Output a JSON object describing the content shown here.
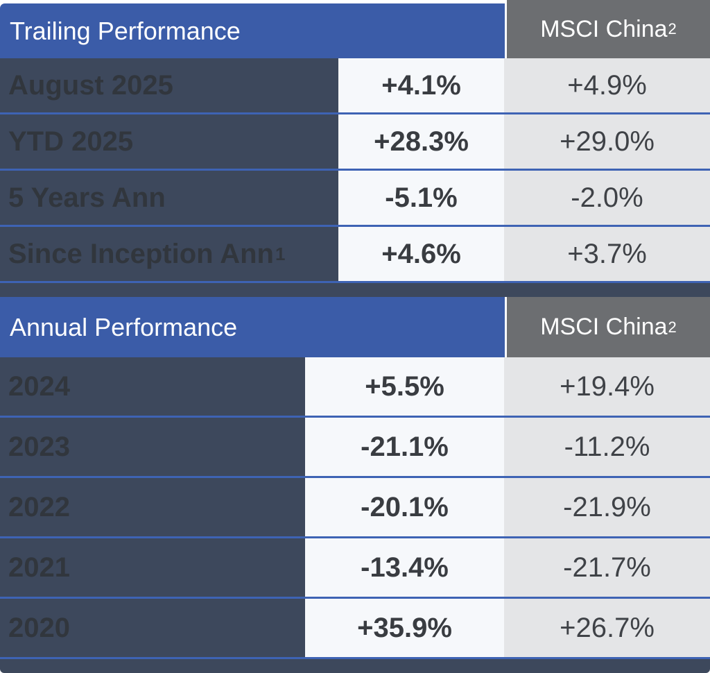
{
  "colors": {
    "header_blue": "#3B5CA8",
    "header_gray": "#6C6E71",
    "label_column_slate": "#3D485C",
    "fund_column_bg": "#F6F8FB",
    "benchmark_column_bg": "#E4E5E7",
    "divider_blue": "#3E63B4"
  },
  "tables": [
    {
      "title": "Trailing Performance",
      "benchmark_header": {
        "name": "MSCI China",
        "superscript": "2"
      },
      "rows": [
        {
          "label": "August 2025",
          "fund": "+4.1%",
          "bench": "+4.9%"
        },
        {
          "label": "YTD 2025",
          "fund": "+28.3%",
          "bench": "+29.0%"
        },
        {
          "label": "5 Years Ann",
          "fund": "-5.1%",
          "bench": "-2.0%"
        },
        {
          "label": "Since Inception Ann",
          "label_sup": "1",
          "fund": "+4.6%",
          "bench": "+3.7%"
        }
      ]
    },
    {
      "title": "Annual Performance",
      "benchmark_header": {
        "name": "MSCI China",
        "superscript": "2"
      },
      "rows": [
        {
          "label": "2024",
          "fund": "+5.5%",
          "bench": "+19.4%"
        },
        {
          "label": "2023",
          "fund": "-21.1%",
          "bench": "-11.2%"
        },
        {
          "label": "2022",
          "fund": "-20.1%",
          "bench": "-21.9%"
        },
        {
          "label": "2021",
          "fund": "-13.4%",
          "bench": "-21.7%"
        },
        {
          "label": "2020",
          "fund": "+35.9%",
          "bench": "+26.7%"
        }
      ]
    }
  ],
  "chart_data": [
    {
      "type": "table",
      "title": "Trailing Performance",
      "header_row": [
        "Trailing Performance",
        "",
        "MSCI China²"
      ],
      "rows": [
        [
          "August 2025",
          "+4.1%",
          "+4.9%"
        ],
        [
          "YTD 2025",
          "+28.3%",
          "+29.0%"
        ],
        [
          "5 Years Ann",
          "-5.1%",
          "-2.0%"
        ],
        [
          "Since Inception Ann¹",
          "+4.6%",
          "+3.7%"
        ]
      ]
    },
    {
      "type": "table",
      "title": "Annual Performance",
      "header_row": [
        "Annual Performance",
        "",
        "MSCI China²"
      ],
      "rows": [
        [
          "2024",
          "+5.5%",
          "+19.4%"
        ],
        [
          "2023",
          "-21.1%",
          "-11.2%"
        ],
        [
          "2022",
          "-20.1%",
          "-21.9%"
        ],
        [
          "2021",
          "-13.4%",
          "-21.7%"
        ],
        [
          "2020",
          "+35.9%",
          "+26.7%"
        ]
      ]
    }
  ]
}
